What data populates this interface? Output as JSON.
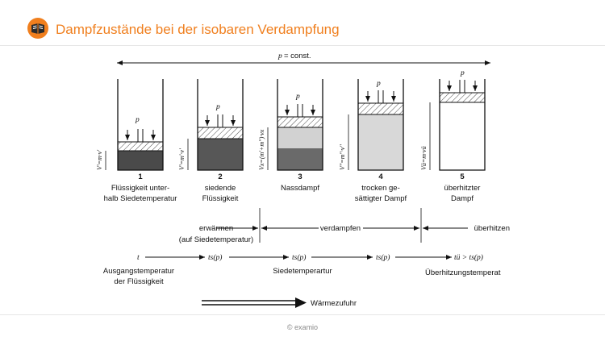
{
  "header": {
    "title": "Dampfzustände bei der isobaren Verdampfung",
    "logo_icon": "book-logo-icon",
    "accent": "#f07f1e"
  },
  "diagram": {
    "const_label_p": "p",
    "const_label_rest": " = const.",
    "piston_p": "p",
    "cylinders": [
      {
        "number": "1",
        "caption": [
          "Flüssigkeit unter-",
          "halb Siedetemperatur"
        ],
        "volume_label": "V'=m·v'"
      },
      {
        "number": "2",
        "caption": [
          "siedende",
          "Flüssigkeit"
        ],
        "volume_label": "V'=m'·v'"
      },
      {
        "number": "3",
        "caption": [
          "Nassdampf"
        ],
        "volume_label": "Vx=(m'+m'')·vx"
      },
      {
        "number": "4",
        "caption": [
          "trocken ge-",
          "sättigter Dampf"
        ],
        "volume_label": "V''=m''·v''"
      },
      {
        "number": "5",
        "caption": [
          "überhitzter",
          "Dampf"
        ],
        "volume_label": "Vü=m·vü"
      }
    ],
    "phases": {
      "heat_label": [
        "erwärmen",
        "(auf Siedetemperatur)"
      ],
      "evaporate_label": "verdampfen",
      "superheat_label": "überhitzen"
    },
    "temperatures": {
      "t_start": "t",
      "ts1": "ts(p)",
      "ts2": "ts(p)",
      "ts3": "ts(p)",
      "t_super": "tü > ts(p)",
      "caption_start": [
        "Ausgangstemperatur",
        "der Flüssigkeit"
      ],
      "caption_boil": "Siedetemperartur",
      "caption_super": "Überhitzungstemperat"
    },
    "heat_flow_label": "Wärmezufuhr"
  },
  "footer": {
    "copyright": "© examio"
  }
}
